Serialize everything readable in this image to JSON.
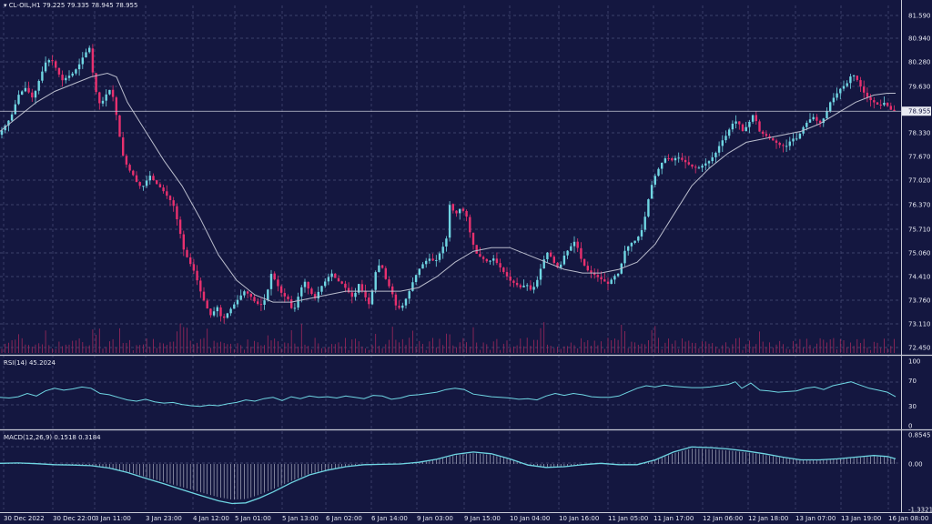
{
  "header": {
    "symbol": "CL-OIL,H1",
    "ohlc": "79.225 79.335 78.945 78.955"
  },
  "indicators": {
    "rsi_label": "RSI(14) 45.2024",
    "macd_label": "MACD(12,26,9) 0.1518 0.3184"
  },
  "colors": {
    "background": "#141740",
    "grid": "#4a5078",
    "bull": "#6fd6e3",
    "bear": "#e8306e",
    "ma": "#b9bccc",
    "rsi": "#6fd6e3",
    "macd": "#6fd6e3",
    "text": "#e6e8f2"
  },
  "chart_data": {
    "type": "candlestick",
    "price_axis": {
      "ticks": [
        "81.590",
        "80.940",
        "80.280",
        "79.630",
        "78.330",
        "77.670",
        "77.020",
        "76.370",
        "75.710",
        "75.060",
        "74.410",
        "73.760",
        "73.110",
        "72.450"
      ],
      "min": 72.45,
      "max": 81.59,
      "current_price": "78.955"
    },
    "time_labels": [
      "30 Dec 2022",
      "30 Dec 22:00",
      "3 Jan 11:00",
      "3 Jan 23:00",
      "4 Jan 12:00",
      "5 Jan 01:00",
      "5 Jan 13:00",
      "6 Jan 02:00",
      "6 Jan 14:00",
      "9 Jan 03:00",
      "9 Jan 15:00",
      "10 Jan 04:00",
      "10 Jan 16:00",
      "11 Jan 05:00",
      "11 Jan 17:00",
      "12 Jan 06:00",
      "12 Jan 18:00",
      "13 Jan 07:00",
      "13 Jan 19:00",
      "16 Jan 08:00"
    ],
    "price_path": [
      [
        0,
        78.3
      ],
      [
        6,
        78.5
      ],
      [
        14,
        78.8
      ],
      [
        22,
        79.4
      ],
      [
        30,
        79.6
      ],
      [
        38,
        79.3
      ],
      [
        46,
        79.9
      ],
      [
        52,
        80.3
      ],
      [
        58,
        80.4
      ],
      [
        64,
        80.1
      ],
      [
        70,
        79.8
      ],
      [
        76,
        79.9
      ],
      [
        82,
        80.0
      ],
      [
        88,
        80.2
      ],
      [
        94,
        80.5
      ],
      [
        100,
        80.7
      ],
      [
        106,
        79.6
      ],
      [
        112,
        79.1
      ],
      [
        118,
        79.4
      ],
      [
        124,
        79.6
      ],
      [
        130,
        78.8
      ],
      [
        136,
        77.8
      ],
      [
        142,
        77.4
      ],
      [
        148,
        77.2
      ],
      [
        154,
        76.9
      ],
      [
        160,
        76.9
      ],
      [
        166,
        77.2
      ],
      [
        172,
        77.0
      ],
      [
        180,
        76.8
      ],
      [
        186,
        76.6
      ],
      [
        192,
        76.4
      ],
      [
        198,
        75.8
      ],
      [
        204,
        75.1
      ],
      [
        210,
        74.8
      ],
      [
        216,
        74.5
      ],
      [
        222,
        74.0
      ],
      [
        228,
        73.6
      ],
      [
        234,
        73.3
      ],
      [
        240,
        73.6
      ],
      [
        246,
        73.2
      ],
      [
        252,
        73.4
      ],
      [
        258,
        73.6
      ],
      [
        264,
        73.8
      ],
      [
        270,
        74.0
      ],
      [
        276,
        73.9
      ],
      [
        282,
        73.7
      ],
      [
        288,
        73.6
      ],
      [
        294,
        73.8
      ],
      [
        300,
        74.5
      ],
      [
        306,
        74.2
      ],
      [
        312,
        73.9
      ],
      [
        318,
        73.8
      ],
      [
        324,
        73.4
      ],
      [
        330,
        73.9
      ],
      [
        336,
        74.3
      ],
      [
        342,
        74.0
      ],
      [
        348,
        73.8
      ],
      [
        354,
        74.1
      ],
      [
        360,
        74.3
      ],
      [
        366,
        74.5
      ],
      [
        372,
        74.3
      ],
      [
        378,
        74.2
      ],
      [
        384,
        74.0
      ],
      [
        390,
        73.8
      ],
      [
        396,
        74.2
      ],
      [
        402,
        73.9
      ],
      [
        408,
        73.6
      ],
      [
        414,
        74.5
      ],
      [
        420,
        74.8
      ],
      [
        426,
        74.3
      ],
      [
        432,
        74.0
      ],
      [
        438,
        73.5
      ],
      [
        444,
        73.6
      ],
      [
        450,
        73.9
      ],
      [
        456,
        74.3
      ],
      [
        462,
        74.6
      ],
      [
        468,
        74.8
      ],
      [
        474,
        74.9
      ],
      [
        480,
        74.8
      ],
      [
        486,
        75.1
      ],
      [
        492,
        75.4
      ],
      [
        496,
        76.4
      ],
      [
        502,
        76.1
      ],
      [
        508,
        76.3
      ],
      [
        514,
        76.1
      ],
      [
        520,
        75.4
      ],
      [
        526,
        75.0
      ],
      [
        532,
        74.9
      ],
      [
        538,
        74.8
      ],
      [
        544,
        74.9
      ],
      [
        550,
        74.7
      ],
      [
        556,
        74.5
      ],
      [
        562,
        74.3
      ],
      [
        568,
        74.2
      ],
      [
        574,
        74.1
      ],
      [
        580,
        74.2
      ],
      [
        586,
        74.0
      ],
      [
        592,
        74.3
      ],
      [
        598,
        74.8
      ],
      [
        604,
        75.1
      ],
      [
        610,
        74.8
      ],
      [
        616,
        74.6
      ],
      [
        622,
        75.0
      ],
      [
        628,
        75.2
      ],
      [
        634,
        75.4
      ],
      [
        640,
        74.9
      ],
      [
        646,
        74.6
      ],
      [
        652,
        74.5
      ],
      [
        658,
        74.4
      ],
      [
        664,
        74.3
      ],
      [
        670,
        74.2
      ],
      [
        676,
        74.4
      ],
      [
        682,
        74.5
      ],
      [
        688,
        75.1
      ],
      [
        694,
        75.3
      ],
      [
        700,
        75.4
      ],
      [
        706,
        75.6
      ],
      [
        712,
        76.2
      ],
      [
        716,
        76.8
      ],
      [
        722,
        77.2
      ],
      [
        728,
        77.5
      ],
      [
        734,
        77.7
      ],
      [
        740,
        77.6
      ],
      [
        746,
        77.7
      ],
      [
        752,
        77.6
      ],
      [
        758,
        77.5
      ],
      [
        764,
        77.4
      ],
      [
        770,
        77.4
      ],
      [
        776,
        77.5
      ],
      [
        782,
        77.6
      ],
      [
        788,
        77.8
      ],
      [
        794,
        78.1
      ],
      [
        800,
        78.3
      ],
      [
        806,
        78.6
      ],
      [
        812,
        78.7
      ],
      [
        818,
        78.4
      ],
      [
        824,
        78.6
      ],
      [
        830,
        78.9
      ],
      [
        836,
        78.4
      ],
      [
        842,
        78.3
      ],
      [
        848,
        78.2
      ],
      [
        854,
        78.1
      ],
      [
        860,
        78.0
      ],
      [
        866,
        78.0
      ],
      [
        872,
        78.2
      ],
      [
        878,
        78.2
      ],
      [
        884,
        78.5
      ],
      [
        890,
        78.7
      ],
      [
        896,
        78.8
      ],
      [
        902,
        78.6
      ],
      [
        908,
        78.8
      ],
      [
        914,
        79.2
      ],
      [
        920,
        79.4
      ],
      [
        926,
        79.6
      ],
      [
        932,
        79.7
      ],
      [
        938,
        80.0
      ],
      [
        944,
        79.8
      ],
      [
        950,
        79.5
      ],
      [
        956,
        79.3
      ],
      [
        962,
        79.2
      ],
      [
        968,
        79.1
      ],
      [
        974,
        79.2
      ],
      [
        980,
        79.0
      ],
      [
        984,
        78.955
      ]
    ],
    "ma_path": [
      [
        0,
        78.4
      ],
      [
        20,
        78.8
      ],
      [
        40,
        79.2
      ],
      [
        60,
        79.5
      ],
      [
        80,
        79.7
      ],
      [
        100,
        79.9
      ],
      [
        118,
        80.0
      ],
      [
        128,
        79.9
      ],
      [
        140,
        79.2
      ],
      [
        160,
        78.4
      ],
      [
        180,
        77.6
      ],
      [
        200,
        76.9
      ],
      [
        220,
        76.0
      ],
      [
        240,
        75.0
      ],
      [
        260,
        74.3
      ],
      [
        280,
        73.9
      ],
      [
        300,
        73.7
      ],
      [
        320,
        73.7
      ],
      [
        340,
        73.8
      ],
      [
        360,
        73.9
      ],
      [
        380,
        74.0
      ],
      [
        400,
        74.0
      ],
      [
        420,
        74.0
      ],
      [
        440,
        74.0
      ],
      [
        460,
        74.1
      ],
      [
        480,
        74.4
      ],
      [
        500,
        74.8
      ],
      [
        520,
        75.1
      ],
      [
        540,
        75.2
      ],
      [
        560,
        75.2
      ],
      [
        580,
        75.0
      ],
      [
        600,
        74.8
      ],
      [
        620,
        74.6
      ],
      [
        640,
        74.5
      ],
      [
        660,
        74.5
      ],
      [
        680,
        74.6
      ],
      [
        700,
        74.8
      ],
      [
        720,
        75.3
      ],
      [
        740,
        76.1
      ],
      [
        760,
        76.9
      ],
      [
        780,
        77.4
      ],
      [
        800,
        77.8
      ],
      [
        820,
        78.1
      ],
      [
        840,
        78.2
      ],
      [
        860,
        78.3
      ],
      [
        880,
        78.4
      ],
      [
        900,
        78.6
      ],
      [
        920,
        78.9
      ],
      [
        940,
        79.2
      ],
      [
        960,
        79.4
      ],
      [
        975,
        79.45
      ],
      [
        984,
        79.45
      ]
    ],
    "rsi": {
      "levels": [
        "100",
        "70",
        "30",
        "0"
      ],
      "values": [
        [
          0,
          44
        ],
        [
          10,
          43
        ],
        [
          20,
          45
        ],
        [
          30,
          50
        ],
        [
          40,
          46
        ],
        [
          50,
          54
        ],
        [
          60,
          58
        ],
        [
          70,
          55
        ],
        [
          80,
          57
        ],
        [
          90,
          60
        ],
        [
          100,
          58
        ],
        [
          110,
          50
        ],
        [
          120,
          48
        ],
        [
          130,
          44
        ],
        [
          140,
          40
        ],
        [
          150,
          38
        ],
        [
          160,
          41
        ],
        [
          170,
          37
        ],
        [
          180,
          35
        ],
        [
          190,
          36
        ],
        [
          200,
          33
        ],
        [
          210,
          31
        ],
        [
          220,
          30
        ],
        [
          230,
          32
        ],
        [
          240,
          31
        ],
        [
          250,
          34
        ],
        [
          260,
          36
        ],
        [
          270,
          40
        ],
        [
          280,
          38
        ],
        [
          290,
          42
        ],
        [
          300,
          44
        ],
        [
          310,
          39
        ],
        [
          320,
          45
        ],
        [
          330,
          42
        ],
        [
          340,
          46
        ],
        [
          350,
          44
        ],
        [
          360,
          45
        ],
        [
          370,
          43
        ],
        [
          380,
          46
        ],
        [
          390,
          44
        ],
        [
          400,
          42
        ],
        [
          410,
          47
        ],
        [
          420,
          46
        ],
        [
          430,
          41
        ],
        [
          440,
          43
        ],
        [
          450,
          47
        ],
        [
          460,
          48
        ],
        [
          470,
          50
        ],
        [
          480,
          52
        ],
        [
          490,
          56
        ],
        [
          500,
          58
        ],
        [
          510,
          56
        ],
        [
          520,
          49
        ],
        [
          530,
          47
        ],
        [
          540,
          45
        ],
        [
          550,
          44
        ],
        [
          560,
          43
        ],
        [
          570,
          41
        ],
        [
          580,
          42
        ],
        [
          590,
          40
        ],
        [
          600,
          46
        ],
        [
          610,
          50
        ],
        [
          620,
          47
        ],
        [
          630,
          50
        ],
        [
          640,
          48
        ],
        [
          650,
          45
        ],
        [
          660,
          44
        ],
        [
          670,
          44
        ],
        [
          680,
          46
        ],
        [
          690,
          52
        ],
        [
          700,
          58
        ],
        [
          710,
          62
        ],
        [
          720,
          60
        ],
        [
          730,
          63
        ],
        [
          740,
          61
        ],
        [
          750,
          60
        ],
        [
          760,
          59
        ],
        [
          770,
          59
        ],
        [
          780,
          60
        ],
        [
          790,
          62
        ],
        [
          800,
          64
        ],
        [
          808,
          68
        ],
        [
          815,
          58
        ],
        [
          825,
          66
        ],
        [
          835,
          55
        ],
        [
          845,
          54
        ],
        [
          855,
          52
        ],
        [
          865,
          53
        ],
        [
          875,
          54
        ],
        [
          885,
          58
        ],
        [
          895,
          60
        ],
        [
          905,
          56
        ],
        [
          915,
          62
        ],
        [
          925,
          65
        ],
        [
          935,
          68
        ],
        [
          945,
          63
        ],
        [
          955,
          58
        ],
        [
          965,
          55
        ],
        [
          975,
          52
        ],
        [
          984,
          45
        ]
      ]
    },
    "macd": {
      "levels": [
        "0.8545",
        "0.00",
        "-1.3321"
      ],
      "min": -1.3321,
      "max": 0.8545,
      "line": [
        [
          0,
          0.02
        ],
        [
          20,
          0.03
        ],
        [
          40,
          0.01
        ],
        [
          60,
          -0.02
        ],
        [
          80,
          -0.03
        ],
        [
          100,
          -0.05
        ],
        [
          120,
          -0.12
        ],
        [
          140,
          -0.25
        ],
        [
          160,
          -0.42
        ],
        [
          180,
          -0.58
        ],
        [
          200,
          -0.75
        ],
        [
          220,
          -0.92
        ],
        [
          240,
          -1.08
        ],
        [
          255,
          -1.16
        ],
        [
          270,
          -1.14
        ],
        [
          285,
          -1.0
        ],
        [
          300,
          -0.82
        ],
        [
          320,
          -0.55
        ],
        [
          340,
          -0.32
        ],
        [
          360,
          -0.18
        ],
        [
          380,
          -0.08
        ],
        [
          400,
          -0.02
        ],
        [
          420,
          -0.01
        ],
        [
          440,
          0.0
        ],
        [
          460,
          0.05
        ],
        [
          480,
          0.14
        ],
        [
          500,
          0.28
        ],
        [
          520,
          0.35
        ],
        [
          540,
          0.3
        ],
        [
          560,
          0.15
        ],
        [
          580,
          -0.03
        ],
        [
          600,
          -0.1
        ],
        [
          620,
          -0.08
        ],
        [
          640,
          -0.02
        ],
        [
          660,
          0.02
        ],
        [
          680,
          -0.02
        ],
        [
          700,
          -0.02
        ],
        [
          720,
          0.12
        ],
        [
          740,
          0.35
        ],
        [
          760,
          0.5
        ],
        [
          780,
          0.48
        ],
        [
          800,
          0.44
        ],
        [
          820,
          0.38
        ],
        [
          840,
          0.3
        ],
        [
          860,
          0.2
        ],
        [
          880,
          0.12
        ],
        [
          900,
          0.12
        ],
        [
          920,
          0.15
        ],
        [
          940,
          0.2
        ],
        [
          960,
          0.25
        ],
        [
          975,
          0.22
        ],
        [
          984,
          0.15
        ]
      ]
    }
  }
}
